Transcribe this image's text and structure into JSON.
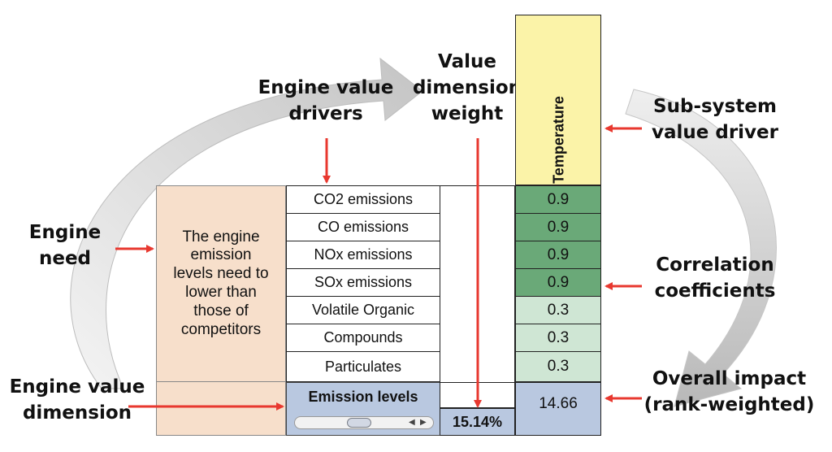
{
  "labels": {
    "engine_value_drivers": [
      "Engine value",
      "drivers"
    ],
    "value_dimension_weight": [
      "Value",
      "dimension",
      "weight"
    ],
    "sub_system_value_driver": [
      "Sub-system",
      "value driver"
    ],
    "engine_need": [
      "Engine",
      "need"
    ],
    "correlation_coefficients": [
      "Correlation",
      "coefficients"
    ],
    "engine_value_dimension": [
      "Engine value",
      "dimension"
    ],
    "overall_impact": [
      "Overall impact",
      "(rank-weighted)"
    ]
  },
  "need_text": [
    "The engine",
    "emission",
    "levels need to",
    "lower than",
    "those of",
    "competitors"
  ],
  "drivers": [
    "CO2 emissions",
    "CO emissions",
    "NOx emissions",
    "SOx emissions",
    "Volatile Organic",
    "Compounds",
    "Particulates"
  ],
  "coefficients": [
    "0.9",
    "0.9",
    "0.9",
    "0.9",
    "0.3",
    "0.3",
    "0.3"
  ],
  "dimension_label": "Emission levels",
  "weight_value": "15.14%",
  "column_header": "Temperature",
  "overall_impact_value": "14.66",
  "colors": {
    "need_bg": "#f7dfcb",
    "header_bg": "#fbf3a8",
    "dark_green": "#6aa978",
    "light_green": "#cfe6d4",
    "blue": "#b9c8e0",
    "arrow_red": "#e8382f"
  }
}
